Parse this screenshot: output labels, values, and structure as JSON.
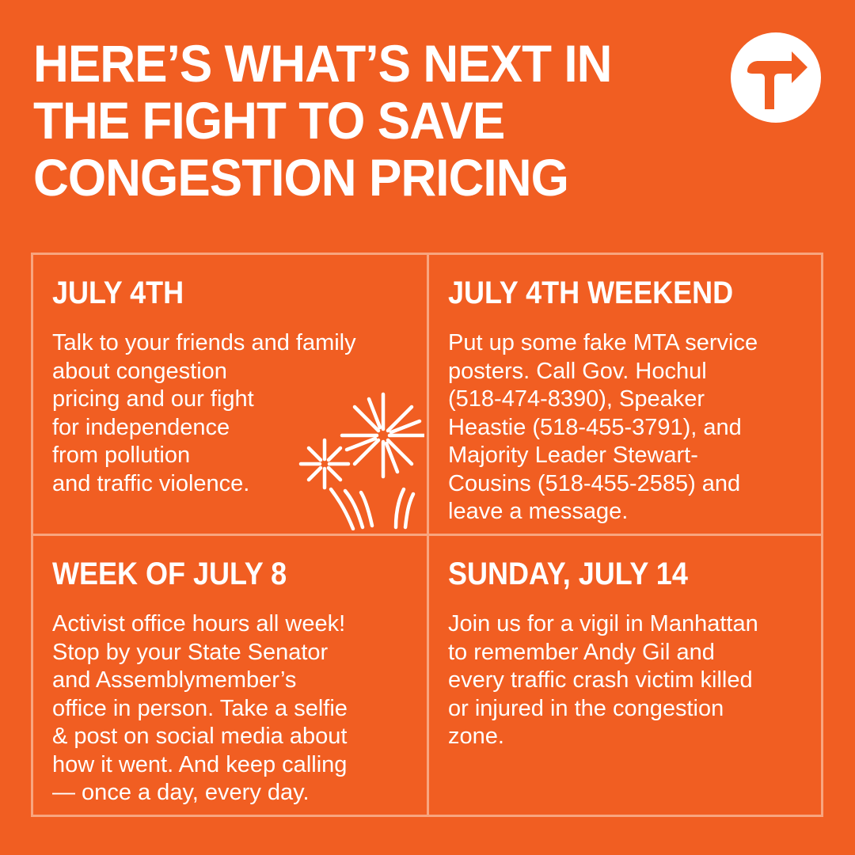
{
  "headline": {
    "lines": [
      "HERE’S WHAT’S NEXT IN",
      "THE FIGHT TO SAVE",
      "CONGESTION PRICING"
    ]
  },
  "logo": {
    "icon": "turn-right-arrow-icon",
    "circle_color": "#FFFFFF",
    "arrow_color": "#F15E22"
  },
  "colors": {
    "background": "#F15E22",
    "text": "#FFFFFF",
    "grid_border": "#F8A57F"
  },
  "cells": [
    {
      "title": "JULY 4TH",
      "body_lines": [
        "Talk to your friends and family",
        "about congestion",
        "pricing and our fight",
        "for independence",
        "from pollution",
        "and traffic violence."
      ],
      "icon": "fireworks-icon"
    },
    {
      "title": "JULY 4TH WEEKEND",
      "body_lines": [
        "Put up some fake MTA service",
        "posters. Call Gov. Hochul",
        "(518-474-8390), Speaker",
        "Heastie (518-455-3791), and",
        "Majority Leader Stewart-",
        "Cousins (518-455-2585) and",
        "leave a message."
      ]
    },
    {
      "title": "WEEK OF JULY 8",
      "body_lines": [
        "Activist office hours all week!",
        "Stop by your State Senator",
        "and Assemblymember’s",
        "office in person. Take a selfie",
        "& post on social media about",
        "how it went. And keep calling",
        "— once a day, every day."
      ]
    },
    {
      "title": "SUNDAY, JULY 14",
      "body_lines": [
        "Join us for a vigil in Manhattan",
        "to remember Andy Gil and",
        "every traffic crash victim killed",
        "or injured in the congestion",
        "zone."
      ]
    }
  ]
}
